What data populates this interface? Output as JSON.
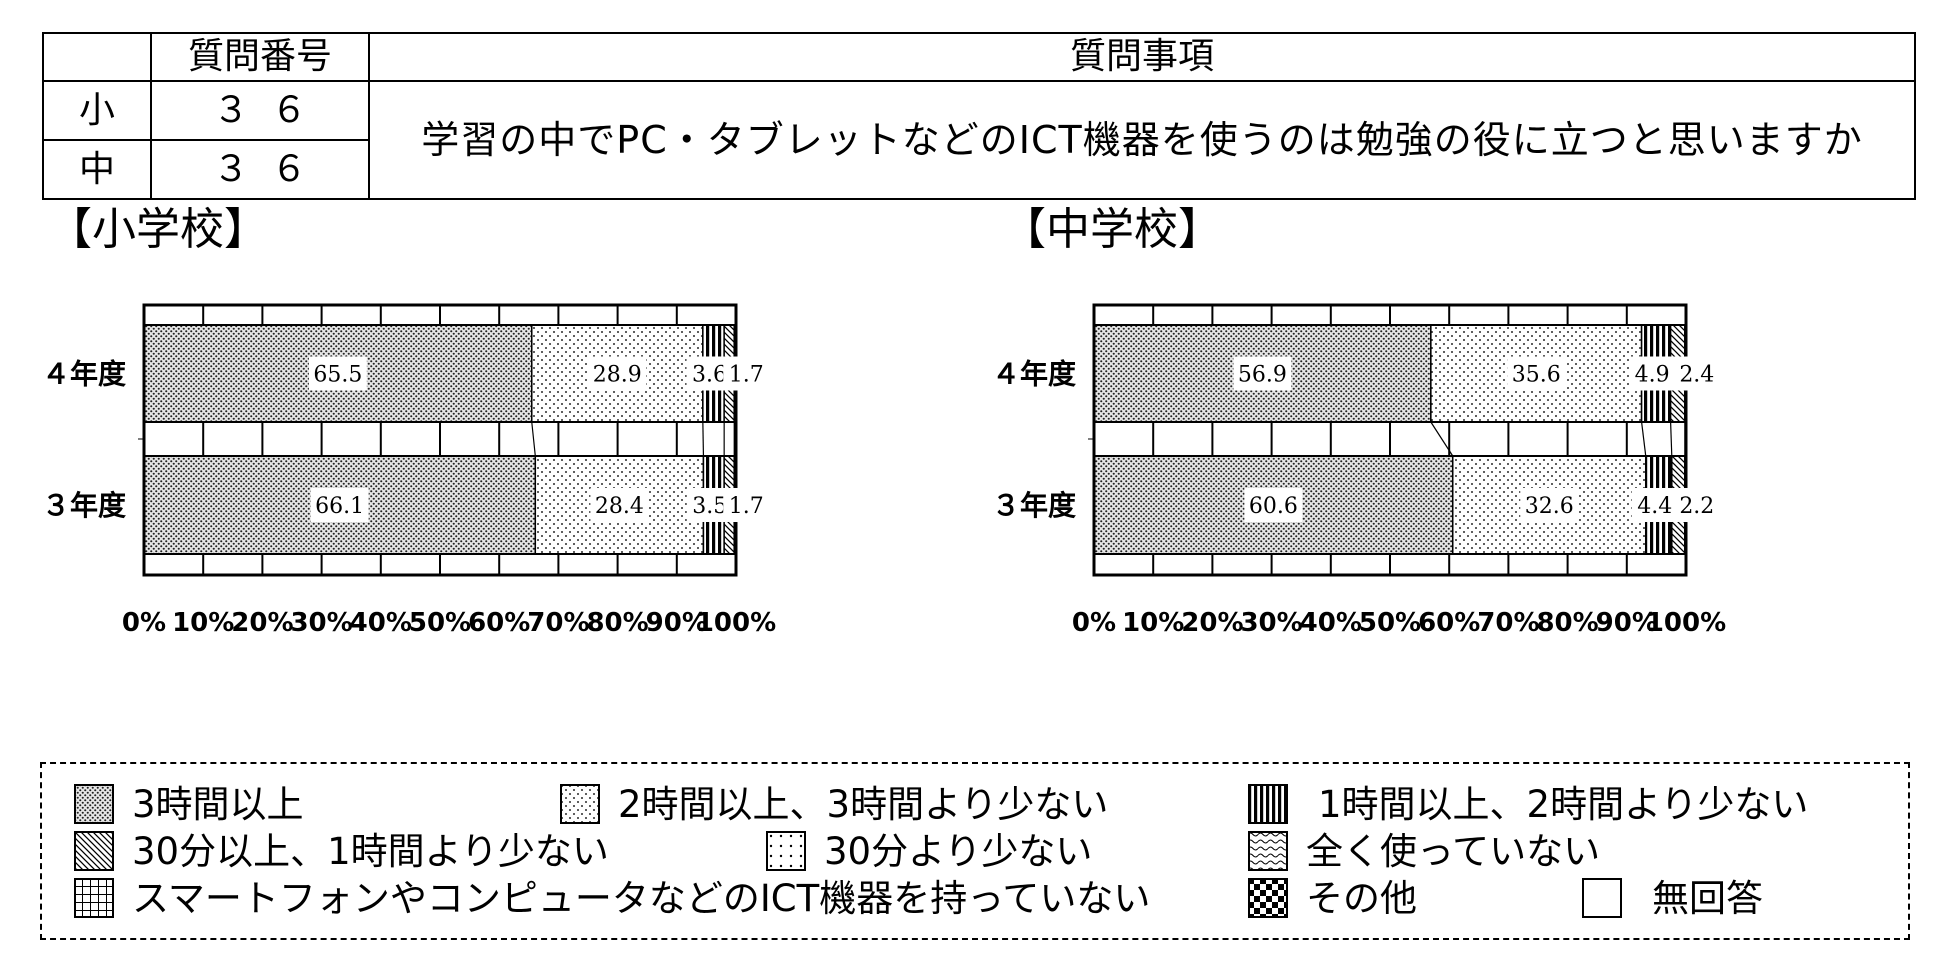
{
  "question_table": {
    "header_number": "質問番号",
    "header_question": "質問事項",
    "rows": [
      {
        "level": "小",
        "number": "３６"
      },
      {
        "level": "中",
        "number": "３６"
      }
    ],
    "question": "学習の中でPC・タブレットなどのICT機器を使うのは勉強の役に立つと思いますか"
  },
  "section_titles": {
    "elementary": "【小学校】",
    "junior_high": "【中学校】"
  },
  "chart_data": [
    {
      "type": "bar",
      "orientation": "horizontal",
      "stacked": true,
      "title": "【小学校】",
      "categories": [
        "４年度",
        "３年度"
      ],
      "series": [
        {
          "name": "3時間以上",
          "values": [
            65.5,
            66.1
          ]
        },
        {
          "name": "2時間以上、3時間より少ない",
          "values": [
            28.9,
            28.4
          ]
        },
        {
          "name": "1時間以上、2時間より少ない",
          "values": [
            3.6,
            3.5
          ]
        },
        {
          "name": "30分以上、1時間より少ない",
          "values": [
            1.7,
            1.7
          ]
        },
        {
          "name": "無回答",
          "values": [
            0.3,
            0.3
          ]
        }
      ],
      "xlim": [
        0,
        100
      ],
      "x_ticks": [
        "0%",
        "10%",
        "20%",
        "30%",
        "40%",
        "50%",
        "60%",
        "70%",
        "80%",
        "90%",
        "100%"
      ],
      "grid": true,
      "legend": "bottom"
    },
    {
      "type": "bar",
      "orientation": "horizontal",
      "stacked": true,
      "title": "【中学校】",
      "categories": [
        "４年度",
        "３年度"
      ],
      "series": [
        {
          "name": "3時間以上",
          "values": [
            56.9,
            60.6
          ]
        },
        {
          "name": "2時間以上、3時間より少ない",
          "values": [
            35.6,
            32.6
          ]
        },
        {
          "name": "1時間以上、2時間より少ない",
          "values": [
            4.9,
            4.4
          ]
        },
        {
          "name": "30分以上、1時間より少ない",
          "values": [
            2.4,
            2.2
          ]
        },
        {
          "name": "無回答",
          "values": [
            0.2,
            0.2
          ]
        }
      ],
      "xlim": [
        0,
        100
      ],
      "x_ticks": [
        "0%",
        "10%",
        "20%",
        "30%",
        "40%",
        "50%",
        "60%",
        "70%",
        "80%",
        "90%",
        "100%"
      ],
      "grid": true,
      "legend": "bottom"
    }
  ],
  "legend": [
    {
      "label": "3時間以上",
      "pattern": "cross-hatch-dense"
    },
    {
      "label": "2時間以上、3時間より少ない",
      "pattern": "fine-dots"
    },
    {
      "label": "1時間以上、2時間より少ない",
      "pattern": "vertical-bars"
    },
    {
      "label": "30分以上、1時間より少ない",
      "pattern": "diagonal-hatch"
    },
    {
      "label": "30分より少ない",
      "pattern": "sparse-dots"
    },
    {
      "label": "全く使っていない",
      "pattern": "wavy"
    },
    {
      "label": "スマートフォンやコンピュータなどのICT機器を持っていない",
      "pattern": "grid"
    },
    {
      "label": "その他",
      "pattern": "checkerboard"
    },
    {
      "label": "無回答",
      "pattern": "blank"
    }
  ]
}
